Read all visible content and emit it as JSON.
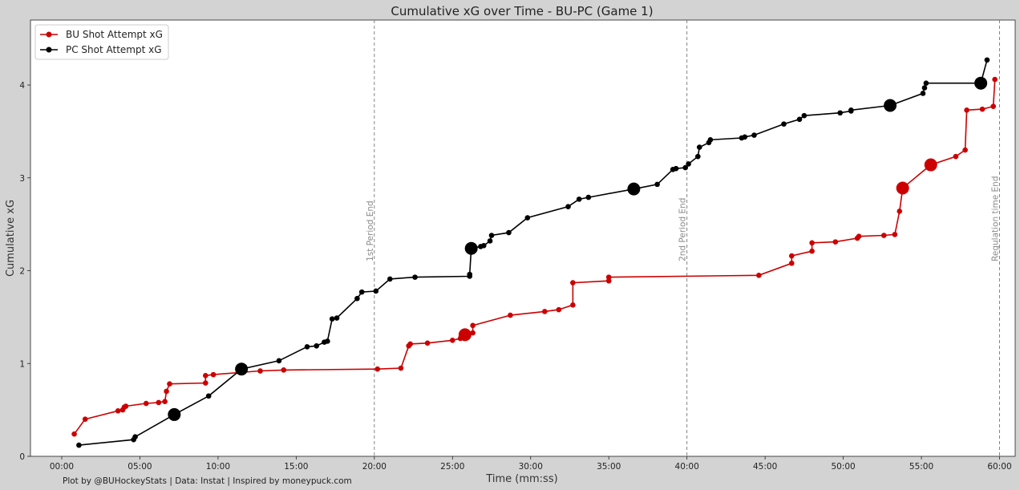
{
  "chart_data": {
    "type": "line",
    "title": "Cumulative xG over Time - BU-PC (Game 1)",
    "xlabel": "Time (mm:ss)",
    "ylabel": "Cumulative xG",
    "xlim": [
      -2,
      61
    ],
    "ylim": [
      0,
      4.7
    ],
    "x_ticks": [
      0,
      5,
      10,
      15,
      20,
      25,
      30,
      35,
      40,
      45,
      50,
      55,
      60
    ],
    "x_tick_labels": [
      "00:00",
      "05:00",
      "10:00",
      "15:00",
      "20:00",
      "25:00",
      "30:00",
      "35:00",
      "40:00",
      "45:00",
      "50:00",
      "55:00",
      "60:00"
    ],
    "y_ticks": [
      0,
      1,
      2,
      3,
      4
    ],
    "y_tick_labels": [
      "0",
      "1",
      "2",
      "3",
      "4"
    ],
    "grid": false,
    "legend_placement": "top-left",
    "vertical_lines": [
      {
        "x": 20,
        "label": "1st Period End"
      },
      {
        "x": 40,
        "label": "2nd Period End"
      },
      {
        "x": 60,
        "label": "Regulation time End"
      }
    ],
    "credit": "Plot by @BUHockeyStats | Data: Instat | Inspired by moneypuck.com",
    "series": [
      {
        "name": "BU Shot Attempt xG",
        "color": "#cc0000",
        "points": [
          {
            "x": 0.8,
            "y": 0.24
          },
          {
            "x": 1.5,
            "y": 0.4
          },
          {
            "x": 3.6,
            "y": 0.49
          },
          {
            "x": 3.9,
            "y": 0.5
          },
          {
            "x": 4.0,
            "y": 0.53
          },
          {
            "x": 4.1,
            "y": 0.54
          },
          {
            "x": 5.4,
            "y": 0.57
          },
          {
            "x": 6.2,
            "y": 0.58
          },
          {
            "x": 6.6,
            "y": 0.59
          },
          {
            "x": 6.7,
            "y": 0.7
          },
          {
            "x": 6.9,
            "y": 0.78
          },
          {
            "x": 9.2,
            "y": 0.79
          },
          {
            "x": 9.2,
            "y": 0.87
          },
          {
            "x": 9.7,
            "y": 0.88
          },
          {
            "x": 12.7,
            "y": 0.92
          },
          {
            "x": 14.2,
            "y": 0.93
          },
          {
            "x": 20.2,
            "y": 0.94
          },
          {
            "x": 21.7,
            "y": 0.95
          },
          {
            "x": 22.2,
            "y": 1.19
          },
          {
            "x": 22.3,
            "y": 1.21
          },
          {
            "x": 23.4,
            "y": 1.22
          },
          {
            "x": 25.0,
            "y": 1.25
          },
          {
            "x": 25.5,
            "y": 1.27
          },
          {
            "x": 25.8,
            "y": 1.31,
            "big": true
          },
          {
            "x": 26.3,
            "y": 1.33
          },
          {
            "x": 26.3,
            "y": 1.41
          },
          {
            "x": 28.7,
            "y": 1.52
          },
          {
            "x": 30.9,
            "y": 1.56
          },
          {
            "x": 31.8,
            "y": 1.58
          },
          {
            "x": 32.7,
            "y": 1.63
          },
          {
            "x": 32.7,
            "y": 1.87
          },
          {
            "x": 35.0,
            "y": 1.89
          },
          {
            "x": 35.0,
            "y": 1.93
          },
          {
            "x": 44.6,
            "y": 1.95
          },
          {
            "x": 46.7,
            "y": 2.08
          },
          {
            "x": 46.7,
            "y": 2.16
          },
          {
            "x": 48.0,
            "y": 2.21
          },
          {
            "x": 48.0,
            "y": 2.3
          },
          {
            "x": 49.5,
            "y": 2.31
          },
          {
            "x": 50.9,
            "y": 2.35
          },
          {
            "x": 51.0,
            "y": 2.37
          },
          {
            "x": 52.6,
            "y": 2.38
          },
          {
            "x": 53.3,
            "y": 2.39
          },
          {
            "x": 53.6,
            "y": 2.64
          },
          {
            "x": 53.8,
            "y": 2.89,
            "big": true
          },
          {
            "x": 55.6,
            "y": 3.14,
            "big": true
          },
          {
            "x": 57.2,
            "y": 3.23
          },
          {
            "x": 57.8,
            "y": 3.3
          },
          {
            "x": 57.9,
            "y": 3.73
          },
          {
            "x": 58.9,
            "y": 3.74
          },
          {
            "x": 59.6,
            "y": 3.77
          },
          {
            "x": 59.7,
            "y": 4.06
          }
        ]
      },
      {
        "name": "PC Shot Attempt xG",
        "color": "#000000",
        "points": [
          {
            "x": 1.1,
            "y": 0.12
          },
          {
            "x": 4.6,
            "y": 0.18
          },
          {
            "x": 4.7,
            "y": 0.21
          },
          {
            "x": 7.2,
            "y": 0.45,
            "big": true
          },
          {
            "x": 9.4,
            "y": 0.65
          },
          {
            "x": 11.5,
            "y": 0.94,
            "big": true
          },
          {
            "x": 13.9,
            "y": 1.03
          },
          {
            "x": 15.7,
            "y": 1.18
          },
          {
            "x": 16.3,
            "y": 1.19
          },
          {
            "x": 16.8,
            "y": 1.23
          },
          {
            "x": 17.0,
            "y": 1.24
          },
          {
            "x": 17.3,
            "y": 1.48
          },
          {
            "x": 17.6,
            "y": 1.49
          },
          {
            "x": 18.9,
            "y": 1.7
          },
          {
            "x": 19.2,
            "y": 1.77
          },
          {
            "x": 20.1,
            "y": 1.78
          },
          {
            "x": 21.0,
            "y": 1.91
          },
          {
            "x": 22.6,
            "y": 1.93
          },
          {
            "x": 26.1,
            "y": 1.94
          },
          {
            "x": 26.1,
            "y": 1.96
          },
          {
            "x": 26.2,
            "y": 2.24,
            "big": true
          },
          {
            "x": 26.8,
            "y": 2.26
          },
          {
            "x": 27.0,
            "y": 2.27
          },
          {
            "x": 27.4,
            "y": 2.32
          },
          {
            "x": 27.5,
            "y": 2.38
          },
          {
            "x": 28.6,
            "y": 2.41
          },
          {
            "x": 29.8,
            "y": 2.57
          },
          {
            "x": 32.4,
            "y": 2.69
          },
          {
            "x": 33.1,
            "y": 2.77
          },
          {
            "x": 33.7,
            "y": 2.79
          },
          {
            "x": 36.6,
            "y": 2.88,
            "big": true
          },
          {
            "x": 38.1,
            "y": 2.93
          },
          {
            "x": 39.1,
            "y": 3.09
          },
          {
            "x": 39.3,
            "y": 3.1
          },
          {
            "x": 39.9,
            "y": 3.11
          },
          {
            "x": 40.1,
            "y": 3.15
          },
          {
            "x": 40.7,
            "y": 3.23
          },
          {
            "x": 40.8,
            "y": 3.33
          },
          {
            "x": 41.4,
            "y": 3.38
          },
          {
            "x": 41.5,
            "y": 3.41
          },
          {
            "x": 43.5,
            "y": 3.43
          },
          {
            "x": 43.7,
            "y": 3.44
          },
          {
            "x": 44.3,
            "y": 3.46
          },
          {
            "x": 46.2,
            "y": 3.58
          },
          {
            "x": 47.2,
            "y": 3.63
          },
          {
            "x": 47.5,
            "y": 3.67
          },
          {
            "x": 49.8,
            "y": 3.7
          },
          {
            "x": 50.5,
            "y": 3.72
          },
          {
            "x": 50.5,
            "y": 3.73
          },
          {
            "x": 53.0,
            "y": 3.78,
            "big": true
          },
          {
            "x": 55.1,
            "y": 3.91
          },
          {
            "x": 55.2,
            "y": 3.97
          },
          {
            "x": 55.3,
            "y": 4.02
          },
          {
            "x": 58.8,
            "y": 4.02,
            "big": true
          },
          {
            "x": 59.2,
            "y": 4.27
          }
        ]
      }
    ]
  }
}
